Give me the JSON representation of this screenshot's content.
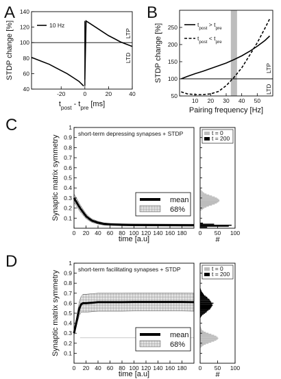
{
  "panels": {
    "A": {
      "letter": "A"
    },
    "B": {
      "letter": "B"
    },
    "C": {
      "letter": "C"
    },
    "D": {
      "letter": "D"
    }
  },
  "chart_data": [
    {
      "id": "A",
      "type": "line",
      "ylabel": "STDP change [%]",
      "xlabel": "t_post - t_pre [ms]",
      "xlim": [
        -45,
        40
      ],
      "ylim": [
        40,
        140
      ],
      "xticks": [
        -20,
        0,
        20,
        40
      ],
      "yticks": [
        40,
        60,
        80,
        100,
        120,
        140
      ],
      "legend": [
        {
          "label": "10 Hz",
          "style": "solid"
        }
      ],
      "side_labels": {
        "upper": "LTP",
        "lower": "LTD"
      },
      "reference_line": 100,
      "series": [
        {
          "name": "10 Hz",
          "style": "solid",
          "x": [
            -45,
            -40,
            -35,
            -30,
            -25,
            -20,
            -15,
            -10,
            -5,
            -1
          ],
          "y": [
            81,
            78,
            75,
            72,
            68,
            64,
            60,
            55,
            50,
            44
          ]
        },
        {
          "name": "10 Hz",
          "style": "solid",
          "x": [
            0,
            1,
            5,
            10,
            15,
            20,
            25,
            30,
            35,
            40
          ],
          "y": [
            52,
            128,
            124,
            119,
            114,
            109,
            105,
            101,
            98,
            95
          ]
        }
      ]
    },
    {
      "id": "B",
      "type": "line",
      "ylabel": "STDP change [%]",
      "xlabel": "Pairing frequency [Hz]",
      "xlim": [
        0,
        60
      ],
      "ylim": [
        50,
        300
      ],
      "xticks": [
        10,
        20,
        30,
        40,
        50
      ],
      "yticks": [
        50,
        100,
        150,
        200,
        250
      ],
      "legend": [
        {
          "label": "t_post > t_pre",
          "style": "solid"
        },
        {
          "label": "t_post < t_pre",
          "style": "dashed"
        }
      ],
      "side_labels": {
        "upper": "LTP",
        "lower": "LTD"
      },
      "reference_line": 100,
      "highlight_band": [
        33,
        37
      ],
      "series": [
        {
          "name": "t_post > t_pre",
          "style": "solid",
          "x": [
            1,
            5,
            10,
            15,
            20,
            25,
            30,
            35,
            40,
            45,
            50,
            55,
            58
          ],
          "y": [
            100,
            107,
            115,
            122,
            130,
            138,
            146,
            156,
            167,
            180,
            195,
            212,
            225
          ]
        },
        {
          "name": "t_post < t_pre",
          "style": "dashed",
          "x": [
            1,
            5,
            10,
            15,
            20,
            25,
            30,
            35,
            40,
            45,
            50,
            55,
            58
          ],
          "y": [
            62,
            56,
            54,
            54,
            56,
            63,
            80,
            104,
            132,
            168,
            205,
            248,
            275
          ]
        }
      ]
    },
    {
      "id": "C",
      "type": "line",
      "title": "short-term depressing synapses + STDP",
      "ylabel": "Synaptic matrix symmetry",
      "xlabel": "time [a.u]",
      "xlim": [
        0,
        200
      ],
      "ylim": [
        0,
        1
      ],
      "xticks": [
        0,
        20,
        40,
        60,
        80,
        100,
        120,
        140,
        160,
        180
      ],
      "yticks": [
        0.1,
        0.2,
        0.3,
        0.4,
        0.5,
        0.6,
        0.7,
        0.8,
        0.9,
        1
      ],
      "legend": [
        {
          "label": "mean",
          "style": "thick"
        },
        {
          "label": "68%",
          "style": "hatched"
        }
      ],
      "series": [
        {
          "name": "mean",
          "x": [
            0,
            5,
            10,
            15,
            20,
            25,
            30,
            40,
            50,
            60,
            80,
            100,
            140,
            200
          ],
          "y": [
            0.3,
            0.25,
            0.2,
            0.16,
            0.12,
            0.095,
            0.075,
            0.055,
            0.042,
            0.038,
            0.034,
            0.032,
            0.031,
            0.03
          ],
          "band_halfwidth": [
            0.04,
            0.04,
            0.035,
            0.03,
            0.025,
            0.02,
            0.017,
            0.014,
            0.012,
            0.01,
            0.01,
            0.01,
            0.01,
            0.01
          ]
        }
      ]
    },
    {
      "id": "C-hist",
      "type": "bar",
      "orientation": "horizontal",
      "xlabel": "#",
      "xlim": [
        0,
        100
      ],
      "xticks": [
        0,
        50,
        100
      ],
      "ylim": [
        0,
        1
      ],
      "legend": [
        {
          "label": "t = 0",
          "color": "#bdbdbd"
        },
        {
          "label": "t = 200",
          "color": "#000000"
        }
      ],
      "series": [
        {
          "name": "t = 0",
          "color": "#bdbdbd",
          "bins": [
            0.18,
            0.19,
            0.2,
            0.21,
            0.22,
            0.23,
            0.24,
            0.25,
            0.26,
            0.27,
            0.28,
            0.29,
            0.3,
            0.31,
            0.32,
            0.33,
            0.34,
            0.35,
            0.36,
            0.37,
            0.38,
            0.39
          ],
          "counts": [
            4,
            8,
            12,
            18,
            25,
            34,
            42,
            48,
            52,
            55,
            55,
            52,
            48,
            42,
            34,
            26,
            18,
            12,
            8,
            5,
            3,
            2
          ]
        },
        {
          "name": "t = 200",
          "color": "#000000",
          "bins": [
            0.01,
            0.02,
            0.03,
            0.04,
            0.05
          ],
          "counts": [
            20,
            82,
            90,
            40,
            8
          ]
        }
      ]
    },
    {
      "id": "D",
      "type": "line",
      "title": "short-term facilitating synapses + STDP",
      "ylabel": "Synaptic matrix symmetry",
      "xlabel": "time [a.u]",
      "xlim": [
        0,
        200
      ],
      "ylim": [
        0,
        1
      ],
      "xticks": [
        0,
        20,
        40,
        60,
        80,
        100,
        120,
        140,
        160,
        180
      ],
      "yticks": [
        0.1,
        0.2,
        0.3,
        0.4,
        0.5,
        0.6,
        0.7,
        0.8,
        0.9,
        1
      ],
      "legend": [
        {
          "label": "mean",
          "style": "thick"
        },
        {
          "label": "68%",
          "style": "hatched"
        }
      ],
      "series": [
        {
          "name": "mean",
          "x": [
            0,
            3,
            6,
            9,
            12,
            15,
            20,
            30,
            40,
            60,
            80,
            100,
            120,
            140,
            160,
            180,
            200
          ],
          "y": [
            0.3,
            0.38,
            0.47,
            0.55,
            0.59,
            0.6,
            0.6,
            0.605,
            0.61,
            0.61,
            0.61,
            0.612,
            0.612,
            0.612,
            0.612,
            0.612,
            0.61
          ],
          "band_halfwidth": [
            0.02,
            0.03,
            0.05,
            0.07,
            0.08,
            0.09,
            0.09,
            0.09,
            0.09,
            0.09,
            0.09,
            0.09,
            0.09,
            0.09,
            0.09,
            0.09,
            0.09
          ]
        },
        {
          "name": "initial",
          "style": "faint",
          "x": [
            10,
            200
          ],
          "y": [
            0.255,
            0.255
          ]
        }
      ]
    },
    {
      "id": "D-hist",
      "type": "bar",
      "orientation": "horizontal",
      "xlabel": "#",
      "xlim": [
        0,
        100
      ],
      "xticks": [
        0,
        50,
        100
      ],
      "ylim": [
        0,
        1
      ],
      "legend": [
        {
          "label": "t = 0",
          "color": "#bdbdbd"
        },
        {
          "label": "t = 200",
          "color": "#000000"
        }
      ],
      "series": [
        {
          "name": "t = 0",
          "color": "#bdbdbd",
          "bins": [
            0.16,
            0.17,
            0.18,
            0.19,
            0.2,
            0.21,
            0.22,
            0.23,
            0.24,
            0.25,
            0.26,
            0.27,
            0.28,
            0.29,
            0.3,
            0.31,
            0.32,
            0.33,
            0.34,
            0.35,
            0.36
          ],
          "counts": [
            3,
            6,
            10,
            16,
            24,
            32,
            40,
            46,
            50,
            52,
            50,
            46,
            40,
            32,
            24,
            16,
            10,
            6,
            4,
            3,
            2
          ]
        },
        {
          "name": "t = 200",
          "color": "#000000",
          "bins": [
            0.46,
            0.47,
            0.48,
            0.49,
            0.5,
            0.51,
            0.52,
            0.53,
            0.54,
            0.55,
            0.56,
            0.57,
            0.58,
            0.59,
            0.6,
            0.61,
            0.62,
            0.63,
            0.64,
            0.65,
            0.66,
            0.67,
            0.68,
            0.69,
            0.7,
            0.71,
            0.72,
            0.73,
            0.74,
            0.75
          ],
          "counts": [
            2,
            4,
            6,
            10,
            14,
            18,
            20,
            24,
            28,
            30,
            32,
            34,
            36,
            34,
            38,
            32,
            30,
            28,
            26,
            22,
            20,
            16,
            12,
            10,
            8,
            6,
            4,
            3,
            2,
            1
          ]
        }
      ]
    }
  ]
}
